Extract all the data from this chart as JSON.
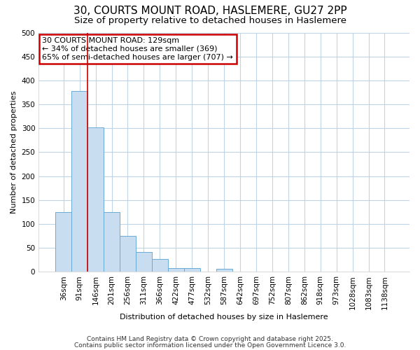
{
  "title1": "30, COURTS MOUNT ROAD, HASLEMERE, GU27 2PP",
  "title2": "Size of property relative to detached houses in Haslemere",
  "xlabel": "Distribution of detached houses by size in Haslemere",
  "ylabel": "Number of detached properties",
  "categories": [
    "36sqm",
    "91sqm",
    "146sqm",
    "201sqm",
    "256sqm",
    "311sqm",
    "366sqm",
    "422sqm",
    "477sqm",
    "532sqm",
    "587sqm",
    "642sqm",
    "697sqm",
    "752sqm",
    "807sqm",
    "862sqm",
    "918sqm",
    "973sqm",
    "1028sqm",
    "1083sqm",
    "1138sqm"
  ],
  "values": [
    125,
    378,
    302,
    125,
    75,
    42,
    27,
    8,
    8,
    0,
    6,
    0,
    0,
    0,
    0,
    0,
    0,
    0,
    0,
    0,
    0
  ],
  "bar_color": "#c8ddf0",
  "bar_edge_color": "#6aaad4",
  "grid_color": "#c0d4e8",
  "background_color": "#ffffff",
  "fig_background_color": "#ffffff",
  "vline_color": "#cc0000",
  "vline_pos": 1.5,
  "annotation_text": "30 COURTS MOUNT ROAD: 129sqm\n← 34% of detached houses are smaller (369)\n65% of semi-detached houses are larger (707) →",
  "annotation_box_color": "#cc0000",
  "ylim": [
    0,
    500
  ],
  "yticks": [
    0,
    50,
    100,
    150,
    200,
    250,
    300,
    350,
    400,
    450,
    500
  ],
  "footer1": "Contains HM Land Registry data © Crown copyright and database right 2025.",
  "footer2": "Contains public sector information licensed under the Open Government Licence 3.0.",
  "title1_fontsize": 11,
  "title2_fontsize": 9.5,
  "axis_fontsize": 8,
  "tick_fontsize": 7.5,
  "footer_fontsize": 6.5,
  "annot_fontsize": 8
}
